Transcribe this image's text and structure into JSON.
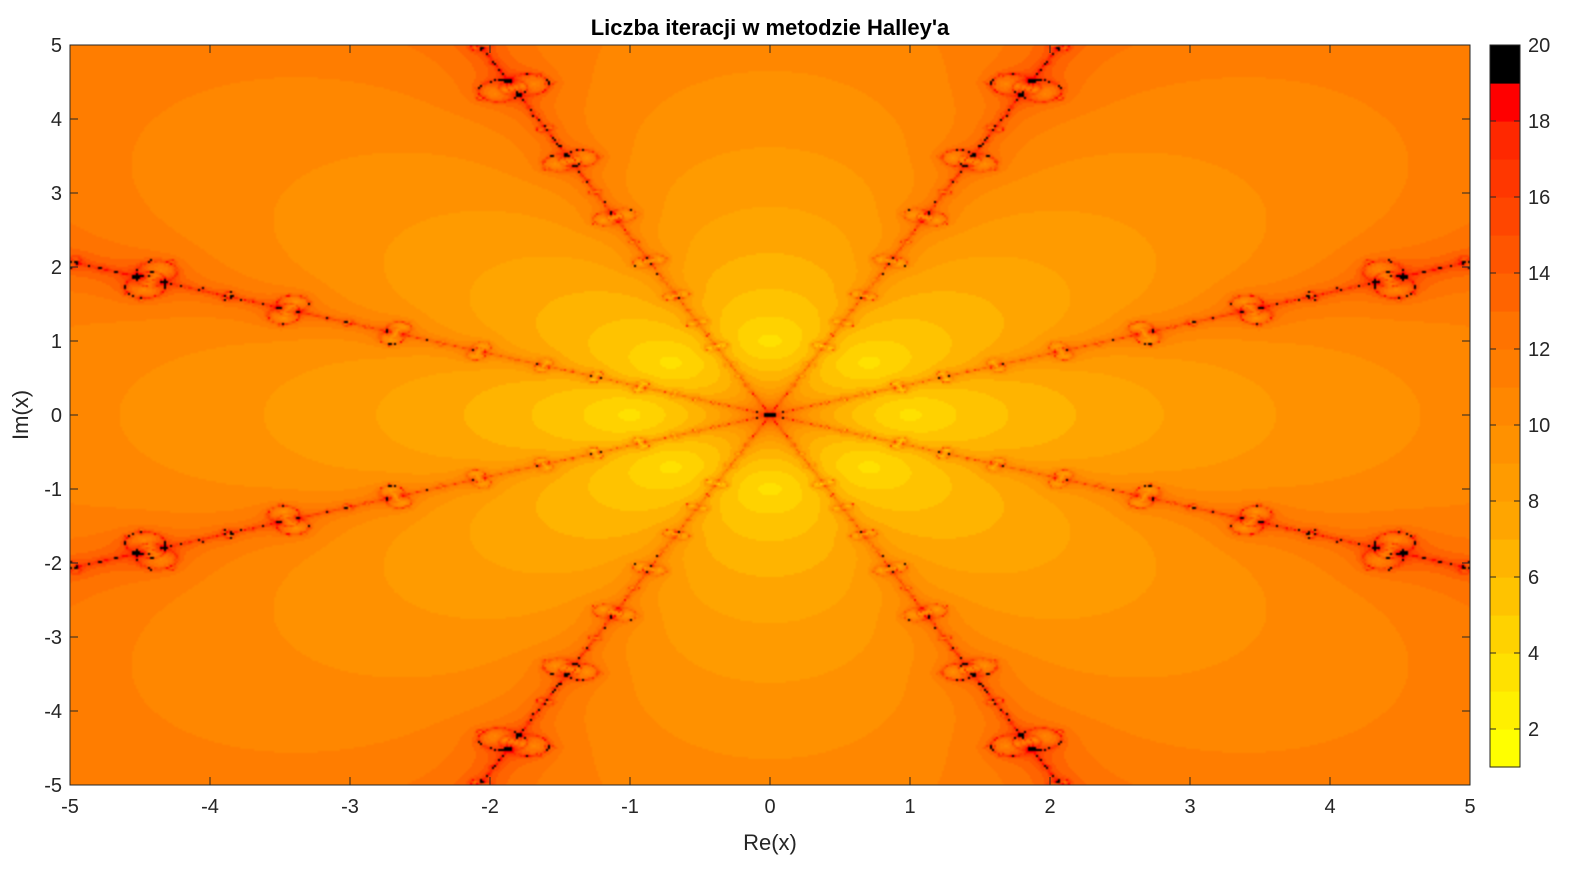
{
  "chart_data": {
    "type": "heatmap",
    "title": "Liczba iteracji w metodzie Halley'a",
    "xlabel": "Re(x)",
    "ylabel": "Im(x)",
    "xlim": [
      -5,
      5
    ],
    "ylim": [
      -5,
      5
    ],
    "x_ticks": [
      -5,
      -4,
      -3,
      -2,
      -1,
      0,
      1,
      2,
      3,
      4,
      5
    ],
    "y_ticks": [
      -5,
      -4,
      -3,
      -2,
      -1,
      0,
      1,
      2,
      3,
      4,
      5
    ],
    "colorbar": {
      "range": [
        1,
        20
      ],
      "ticks": [
        2,
        4,
        6,
        8,
        10,
        12,
        14,
        16,
        18,
        20
      ],
      "colors": [
        "#ffff00",
        "#fff000",
        "#ffe100",
        "#ffd200",
        "#ffc300",
        "#ffb400",
        "#ffa500",
        "#ff9b00",
        "#ff9100",
        "#ff8700",
        "#ff7d00",
        "#ff7300",
        "#ff6400",
        "#ff5500",
        "#ff4600",
        "#ff3700",
        "#ff2800",
        "#ff0000",
        "#000000"
      ]
    },
    "iteration_range": [
      2,
      20
    ],
    "roots_count": 8,
    "grid": false,
    "legend": "colorbar-right"
  }
}
